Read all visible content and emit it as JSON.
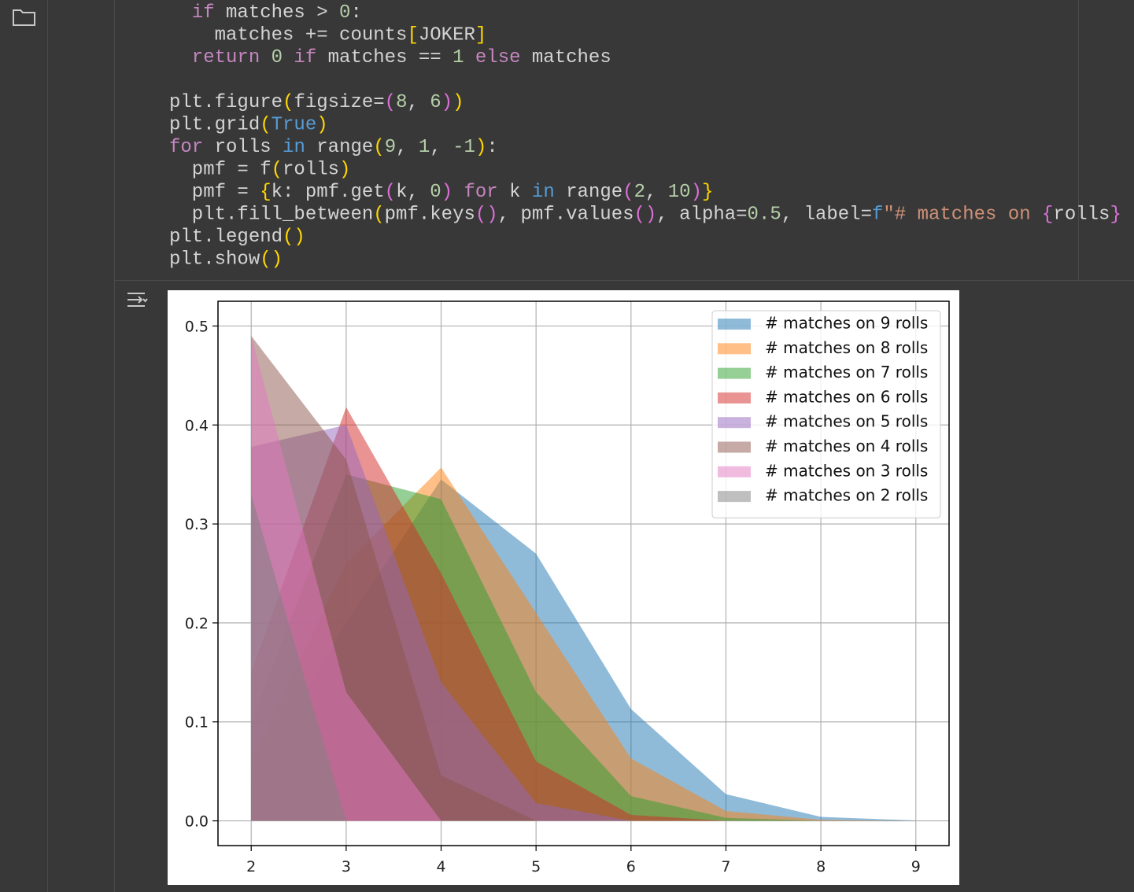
{
  "code": {
    "lines": [
      [
        {
          "text": "  if",
          "color": "#c586c0"
        },
        {
          "text": " matches > ",
          "color": "#d4d4d4"
        },
        {
          "text": "0",
          "color": "#b5cea8"
        },
        {
          "text": ":",
          "color": "#d4d4d4"
        }
      ],
      [
        {
          "text": "    matches += counts",
          "color": "#d4d4d4"
        },
        {
          "text": "[",
          "color": "#ffd700"
        },
        {
          "text": "JOKER",
          "color": "#d4d4d4"
        },
        {
          "text": "]",
          "color": "#ffd700"
        }
      ],
      [
        {
          "text": "  return",
          "color": "#c586c0"
        },
        {
          "text": " ",
          "color": "#d4d4d4"
        },
        {
          "text": "0",
          "color": "#b5cea8"
        },
        {
          "text": " if",
          "color": "#c586c0"
        },
        {
          "text": " matches == ",
          "color": "#d4d4d4"
        },
        {
          "text": "1",
          "color": "#b5cea8"
        },
        {
          "text": " else",
          "color": "#c586c0"
        },
        {
          "text": " matches",
          "color": "#d4d4d4"
        }
      ],
      [],
      [
        {
          "text": "plt.figure",
          "color": "#d4d4d4"
        },
        {
          "text": "(",
          "color": "#ffd700"
        },
        {
          "text": "figsize=",
          "color": "#d4d4d4"
        },
        {
          "text": "(",
          "color": "#da70d6"
        },
        {
          "text": "8",
          "color": "#b5cea8"
        },
        {
          "text": ", ",
          "color": "#d4d4d4"
        },
        {
          "text": "6",
          "color": "#b5cea8"
        },
        {
          "text": ")",
          "color": "#da70d6"
        },
        {
          "text": ")",
          "color": "#ffd700"
        }
      ],
      [
        {
          "text": "plt.grid",
          "color": "#d4d4d4"
        },
        {
          "text": "(",
          "color": "#ffd700"
        },
        {
          "text": "True",
          "color": "#569cd6"
        },
        {
          "text": ")",
          "color": "#ffd700"
        }
      ],
      [
        {
          "text": "for",
          "color": "#c586c0"
        },
        {
          "text": " rolls ",
          "color": "#d4d4d4"
        },
        {
          "text": "in",
          "color": "#569cd6"
        },
        {
          "text": " range",
          "color": "#d4d4d4"
        },
        {
          "text": "(",
          "color": "#ffd700"
        },
        {
          "text": "9",
          "color": "#b5cea8"
        },
        {
          "text": ", ",
          "color": "#d4d4d4"
        },
        {
          "text": "1",
          "color": "#b5cea8"
        },
        {
          "text": ", ",
          "color": "#d4d4d4"
        },
        {
          "text": "-1",
          "color": "#b5cea8"
        },
        {
          "text": ")",
          "color": "#ffd700"
        },
        {
          "text": ":",
          "color": "#d4d4d4"
        }
      ],
      [
        {
          "text": "  pmf = f",
          "color": "#d4d4d4"
        },
        {
          "text": "(",
          "color": "#ffd700"
        },
        {
          "text": "rolls",
          "color": "#d4d4d4"
        },
        {
          "text": ")",
          "color": "#ffd700"
        }
      ],
      [
        {
          "text": "  pmf = ",
          "color": "#d4d4d4"
        },
        {
          "text": "{",
          "color": "#ffd700"
        },
        {
          "text": "k: pmf.get",
          "color": "#d4d4d4"
        },
        {
          "text": "(",
          "color": "#da70d6"
        },
        {
          "text": "k, ",
          "color": "#d4d4d4"
        },
        {
          "text": "0",
          "color": "#b5cea8"
        },
        {
          "text": ")",
          "color": "#da70d6"
        },
        {
          "text": " for",
          "color": "#c586c0"
        },
        {
          "text": " k ",
          "color": "#d4d4d4"
        },
        {
          "text": "in",
          "color": "#569cd6"
        },
        {
          "text": " range",
          "color": "#d4d4d4"
        },
        {
          "text": "(",
          "color": "#da70d6"
        },
        {
          "text": "2",
          "color": "#b5cea8"
        },
        {
          "text": ", ",
          "color": "#d4d4d4"
        },
        {
          "text": "10",
          "color": "#b5cea8"
        },
        {
          "text": ")",
          "color": "#da70d6"
        },
        {
          "text": "}",
          "color": "#ffd700"
        }
      ],
      [
        {
          "text": "  plt.fill_between",
          "color": "#d4d4d4"
        },
        {
          "text": "(",
          "color": "#ffd700"
        },
        {
          "text": "pmf.keys",
          "color": "#d4d4d4"
        },
        {
          "text": "()",
          "color": "#da70d6"
        },
        {
          "text": ", pmf.values",
          "color": "#d4d4d4"
        },
        {
          "text": "()",
          "color": "#da70d6"
        },
        {
          "text": ", alpha=",
          "color": "#d4d4d4"
        },
        {
          "text": "0.5",
          "color": "#b5cea8"
        },
        {
          "text": ", label=",
          "color": "#d4d4d4"
        },
        {
          "text": "f",
          "color": "#569cd6"
        },
        {
          "text": "\"# matches on ",
          "color": "#ce9178"
        },
        {
          "text": "{",
          "color": "#da70d6"
        },
        {
          "text": "rolls",
          "color": "#d4d4d4"
        },
        {
          "text": "}",
          "color": "#da70d6"
        }
      ],
      [
        {
          "text": "plt.legend",
          "color": "#d4d4d4"
        },
        {
          "text": "()",
          "color": "#ffd700"
        }
      ],
      [
        {
          "text": "plt.show",
          "color": "#d4d4d4"
        },
        {
          "text": "()",
          "color": "#ffd700"
        }
      ]
    ]
  },
  "chart_data": {
    "type": "area",
    "alpha": 0.5,
    "grid": true,
    "legend": "upper right",
    "x": [
      2,
      3,
      4,
      5,
      6,
      7,
      8,
      9
    ],
    "xlim": [
      1.65,
      9.35
    ],
    "xticks": [
      2,
      3,
      4,
      5,
      6,
      7,
      8,
      9
    ],
    "ylim": [
      -0.025,
      0.525
    ],
    "yticks": [
      {
        "value": 0,
        "label": "0.0"
      },
      {
        "value": 0.1,
        "label": "0.1"
      },
      {
        "value": 0.2,
        "label": "0.2"
      },
      {
        "value": 0.3,
        "label": "0.3"
      },
      {
        "value": 0.4,
        "label": "0.4"
      },
      {
        "value": 0.5,
        "label": "0.5"
      }
    ],
    "series": [
      {
        "name": "# matches on 9 rolls",
        "color": "#1f77b4",
        "values": [
          0.04,
          0.2,
          0.345,
          0.27,
          0.113,
          0.027,
          0.004,
          0.0003
        ]
      },
      {
        "name": "# matches on 8 rolls",
        "color": "#ff7f0e",
        "values": [
          0.06,
          0.26,
          0.357,
          0.21,
          0.063,
          0.01,
          0.001,
          0
        ]
      },
      {
        "name": "# matches on 7 rolls",
        "color": "#2ca02c",
        "values": [
          0.1,
          0.35,
          0.325,
          0.13,
          0.025,
          0.003,
          0,
          0
        ]
      },
      {
        "name": "# matches on 6 rolls",
        "color": "#d62728",
        "values": [
          0.15,
          0.418,
          0.25,
          0.06,
          0.006,
          0,
          0,
          0
        ]
      },
      {
        "name": "# matches on 5 rolls",
        "color": "#9467bd",
        "values": [
          0.378,
          0.4,
          0.14,
          0.018,
          0,
          0,
          0,
          0
        ]
      },
      {
        "name": "# matches on 4 rolls",
        "color": "#8c564b",
        "values": [
          0.49,
          0.365,
          0.046,
          0,
          0,
          0,
          0,
          0
        ]
      },
      {
        "name": "# matches on 3 rolls",
        "color": "#e377c2",
        "values": [
          0.49,
          0.13,
          0,
          0,
          0,
          0,
          0,
          0
        ]
      },
      {
        "name": "# matches on 2 rolls",
        "color": "#7f7f7f",
        "values": [
          0.33,
          0,
          0,
          0,
          0,
          0,
          0,
          0
        ]
      }
    ]
  }
}
